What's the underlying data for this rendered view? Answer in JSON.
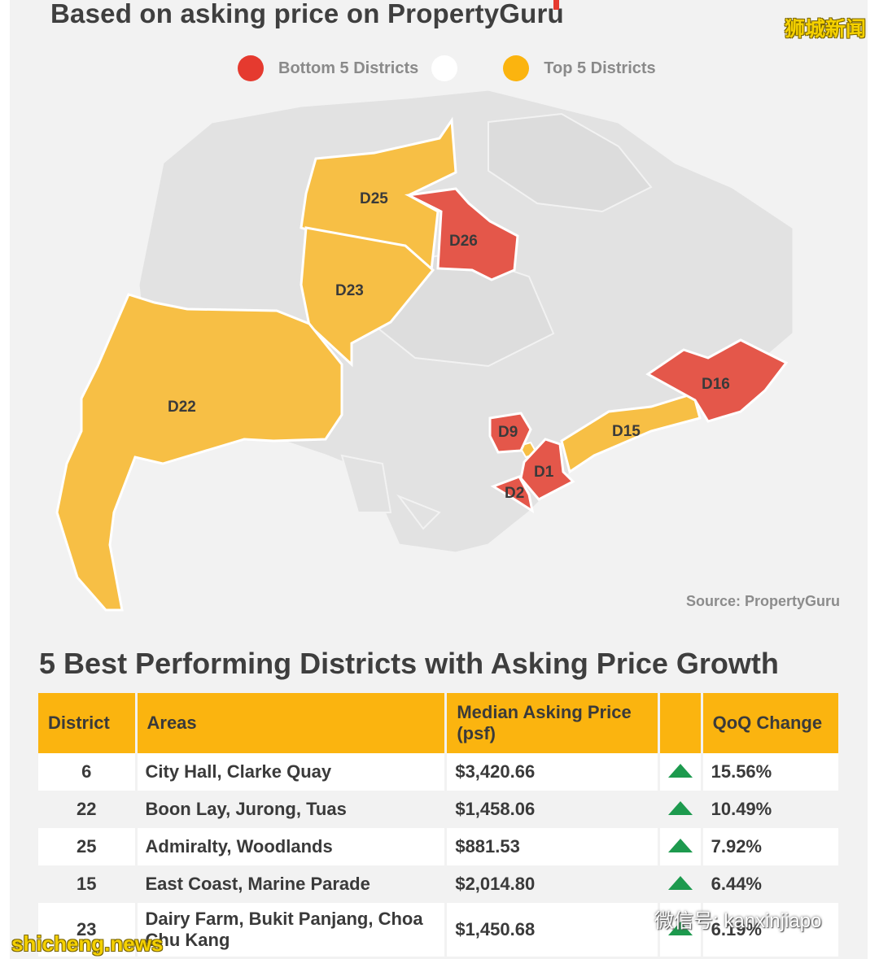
{
  "header": {
    "title": "Based on asking price on PropertyGuru",
    "watermark": "狮城新闻"
  },
  "legend": {
    "items": [
      {
        "label": "Bottom 5 Districts",
        "color": "#e53a2f"
      },
      {
        "label": "",
        "color": "#ffffff"
      },
      {
        "label": "Top 5 Districts",
        "color": "#fbb40f"
      }
    ]
  },
  "map": {
    "districts": [
      {
        "label": "D25",
        "group": "top",
        "color": "#f7bf45"
      },
      {
        "label": "D26",
        "group": "bottom",
        "color": "#e4574a"
      },
      {
        "label": "D23",
        "group": "top",
        "color": "#f7bf45"
      },
      {
        "label": "D22",
        "group": "top",
        "color": "#f7bf45"
      },
      {
        "label": "D16",
        "group": "bottom",
        "color": "#e4574a"
      },
      {
        "label": "D15",
        "group": "top",
        "color": "#f7bf45"
      },
      {
        "label": "D9",
        "group": "bottom",
        "color": "#e4574a"
      },
      {
        "label": "D1",
        "group": "bottom",
        "color": "#e4574a"
      },
      {
        "label": "D2",
        "group": "bottom",
        "color": "#e4574a"
      }
    ],
    "source": "Source: PropertyGuru"
  },
  "table": {
    "title": "5 Best Performing Districts with Asking Price Growth",
    "headers": {
      "district": "District",
      "areas": "Areas",
      "price": "Median Asking Price (psf)",
      "trend": "",
      "change": "QoQ Change"
    },
    "rows": [
      {
        "district": "6",
        "areas": "City Hall, Clarke Quay",
        "price": "$3,420.66",
        "change": "15.56%"
      },
      {
        "district": "22",
        "areas": "Boon Lay, Jurong, Tuas",
        "price": "$1,458.06",
        "change": "10.49%"
      },
      {
        "district": "25",
        "areas": "Admiralty, Woodlands",
        "price": "$881.53",
        "change": "7.92%"
      },
      {
        "district": "15",
        "areas": "East Coast, Marine Parade",
        "price": "$2,014.80",
        "change": "6.44%"
      },
      {
        "district": "23",
        "areas": "Dairy Farm, Bukit Panjang, Choa Chu Kang",
        "price": "$1,450.68",
        "change": "6.19%"
      }
    ],
    "trend_icon": "up-triangle-icon",
    "trend_color": "#1d9a4e"
  },
  "watermarks": {
    "bottom_left": "shicheng.news",
    "wechat": "微信号: kanxinjiapo"
  }
}
